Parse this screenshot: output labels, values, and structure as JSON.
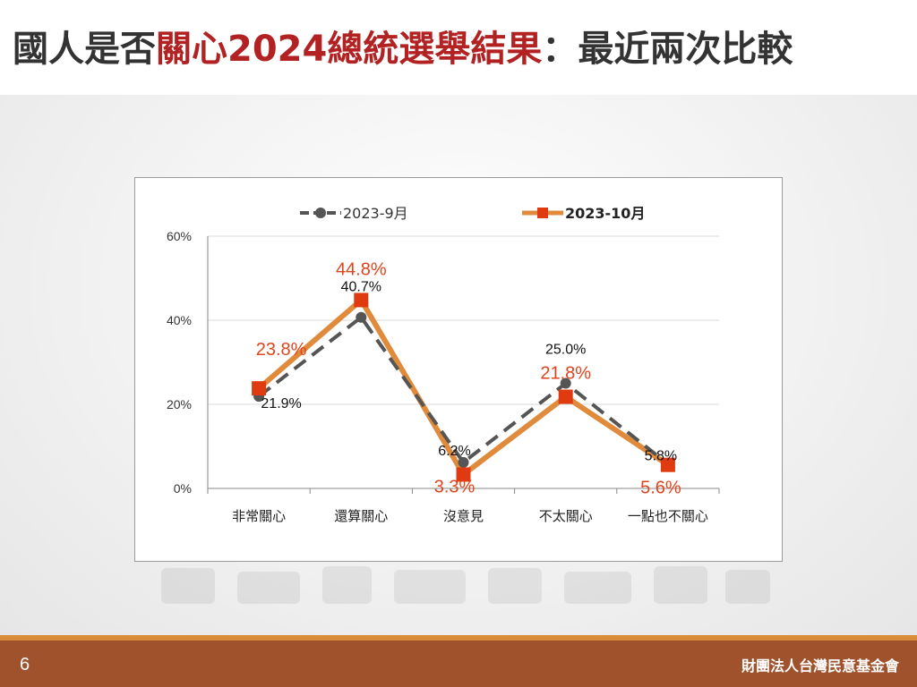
{
  "slide": {
    "title_pre": "國人是否",
    "title_highlight": "關心2024總統選舉結果",
    "title_post": "：最近兩次比較",
    "page_number": "6",
    "organization": "財團法人台灣民意基金會"
  },
  "colors": {
    "series1": "#555555",
    "series2": "#e08a3c",
    "series2_marker": "#e03a10",
    "series2_label": "#e0441c",
    "title_highlight": "#b22222",
    "footer": "#a0522d"
  },
  "chart_data": {
    "type": "line",
    "categories": [
      "非常關心",
      "還算關心",
      "沒意見",
      "不太關心",
      "一點也不關心"
    ],
    "series": [
      {
        "name": "2023-9月",
        "values": [
          21.9,
          40.7,
          6.2,
          25.0,
          5.8
        ],
        "labels": [
          "21.9%",
          "40.7%",
          "6.2%",
          "25.0%",
          "5.8%"
        ],
        "style": "dashed",
        "marker": "circle"
      },
      {
        "name": "2023-10月",
        "values": [
          23.8,
          44.8,
          3.3,
          21.8,
          5.6
        ],
        "labels": [
          "23.8%",
          "44.8%",
          "3.3%",
          "21.8%",
          "5.6%"
        ],
        "style": "solid",
        "marker": "square"
      }
    ],
    "yticks": [
      "0%",
      "20%",
      "40%",
      "60%"
    ],
    "ylim": [
      0,
      60
    ],
    "grid": true,
    "legend": "top"
  }
}
